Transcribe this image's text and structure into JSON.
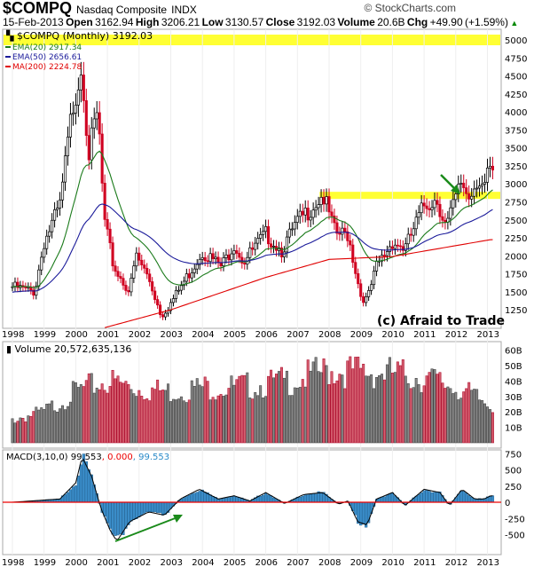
{
  "header": {
    "symbol": "$COMPQ",
    "name": "Nasdaq Composite",
    "exchange": "INDX",
    "brand": "© StockCharts.com",
    "date": "15-Feb-2013",
    "open_label": "Open",
    "open": "3162.94",
    "high_label": "High",
    "high": "3206.21",
    "low_label": "Low",
    "low": "3130.57",
    "close_label": "Close",
    "close": "3192.03",
    "volume_label": "Volume",
    "volume": "20.6B",
    "chg_label": "Chg",
    "chg": "+49.90 (+1.59%)"
  },
  "legend": {
    "price": "$COMPQ (Monthly) 3192.03",
    "ema20": "EMA(20) 2917.34",
    "ema50": "EMA(50) 2656.61",
    "ma200": "MA(200) 2224.78",
    "volume": "Volume 20,572,635,136",
    "macd_a": "MACD(3,10,0) 99.553",
    "macd_b": ", 0.000",
    "macd_c": ", 99.553"
  },
  "watermark": "(c) Afraid to Trade",
  "colors": {
    "ema20": "#1a7a1a",
    "ema50": "#1a1a9a",
    "ma200": "#e00000",
    "up": "#000000",
    "down": "#d00020",
    "highlight": "#ffff33",
    "macd": "#3a8cc8"
  },
  "chart_data": [
    {
      "type": "candlestick",
      "title": "$COMPQ Monthly",
      "ylim": [
        1100,
        5150
      ],
      "yticks": [
        1250,
        1500,
        1750,
        2000,
        2250,
        2500,
        2750,
        3000,
        3250,
        3500,
        3750,
        4000,
        4250,
        4500,
        4750,
        5000
      ],
      "xticks": [
        "1998",
        "1999",
        "2000",
        "2001",
        "2002",
        "2003",
        "2004",
        "2005",
        "2006",
        "2007",
        "2008",
        "2009",
        "2010",
        "2011",
        "2012",
        "2013"
      ],
      "close_keypoints": [
        [
          1998.0,
          1570
        ],
        [
          1998.7,
          1500
        ],
        [
          1999.0,
          2190
        ],
        [
          1999.5,
          2690
        ],
        [
          1999.9,
          4069
        ],
        [
          2000.2,
          4700
        ],
        [
          2000.4,
          3400
        ],
        [
          2000.7,
          4000
        ],
        [
          2000.9,
          2470
        ],
        [
          2001.2,
          1840
        ],
        [
          2001.7,
          1500
        ],
        [
          2001.9,
          2000
        ],
        [
          2002.3,
          1700
        ],
        [
          2002.7,
          1170
        ],
        [
          2003.0,
          1340
        ],
        [
          2003.5,
          1700
        ],
        [
          2004.0,
          2060
        ],
        [
          2004.6,
          1850
        ],
        [
          2005.0,
          2170
        ],
        [
          2005.3,
          1920
        ],
        [
          2006.0,
          2300
        ],
        [
          2006.5,
          2080
        ],
        [
          2007.0,
          2460
        ],
        [
          2007.8,
          2850
        ],
        [
          2008.2,
          2300
        ],
        [
          2008.6,
          2300
        ],
        [
          2009.0,
          1450
        ],
        [
          2009.2,
          1380
        ],
        [
          2009.5,
          1850
        ],
        [
          2010.0,
          2200
        ],
        [
          2010.4,
          2100
        ],
        [
          2011.0,
          2700
        ],
        [
          2011.4,
          2800
        ],
        [
          2011.7,
          2400
        ],
        [
          2012.2,
          3050
        ],
        [
          2012.4,
          2800
        ],
        [
          2012.7,
          3100
        ],
        [
          2012.9,
          2950
        ],
        [
          2013.1,
          3192
        ]
      ],
      "ma200_keypoints": [
        [
          2000.9,
          1000
        ],
        [
          2003,
          1250
        ],
        [
          2006,
          1700
        ],
        [
          2008,
          1950
        ],
        [
          2010,
          1990
        ],
        [
          2013.1,
          2224.78
        ]
      ],
      "highlights": [
        5000,
        2840
      ]
    },
    {
      "type": "bar",
      "title": "Volume",
      "ylim": [
        0,
        65
      ],
      "unit": "B",
      "yticks": [
        10,
        20,
        30,
        40,
        50,
        60
      ],
      "yearly_avg_billions": [
        [
          1998,
          15
        ],
        [
          1999,
          20
        ],
        [
          2000,
          33
        ],
        [
          2001,
          40
        ],
        [
          2002,
          35
        ],
        [
          2003,
          33
        ],
        [
          2004,
          36
        ],
        [
          2005,
          36
        ],
        [
          2006,
          38
        ],
        [
          2007,
          41
        ],
        [
          2008,
          47
        ],
        [
          2009,
          46
        ],
        [
          2010,
          45
        ],
        [
          2011,
          42
        ],
        [
          2012,
          36
        ],
        [
          2013,
          25
        ]
      ]
    },
    {
      "type": "bar",
      "title": "MACD(3,10,0)",
      "ylim": [
        -750,
        850
      ],
      "yticks": [
        750,
        500,
        250,
        0,
        -250,
        -500
      ],
      "keypoints": [
        [
          1998,
          0
        ],
        [
          1999.5,
          50
        ],
        [
          2000.0,
          300
        ],
        [
          2000.2,
          700
        ],
        [
          2000.5,
          400
        ],
        [
          2000.8,
          -100
        ],
        [
          2001.1,
          -450
        ],
        [
          2001.3,
          -600
        ],
        [
          2001.7,
          -300
        ],
        [
          2002.3,
          -150
        ],
        [
          2002.8,
          -200
        ],
        [
          2003.3,
          50
        ],
        [
          2003.9,
          200
        ],
        [
          2004.5,
          50
        ],
        [
          2005,
          100
        ],
        [
          2005.5,
          20
        ],
        [
          2006,
          150
        ],
        [
          2006.6,
          -20
        ],
        [
          2007.2,
          120
        ],
        [
          2007.8,
          150
        ],
        [
          2008.3,
          -30
        ],
        [
          2008.6,
          20
        ],
        [
          2008.9,
          -300
        ],
        [
          2009.2,
          -350
        ],
        [
          2009.5,
          50
        ],
        [
          2010,
          150
        ],
        [
          2010.4,
          -50
        ],
        [
          2011,
          200
        ],
        [
          2011.5,
          150
        ],
        [
          2011.8,
          -50
        ],
        [
          2012.2,
          200
        ],
        [
          2012.6,
          50
        ],
        [
          2012.9,
          50
        ],
        [
          2013.1,
          100
        ]
      ]
    }
  ]
}
